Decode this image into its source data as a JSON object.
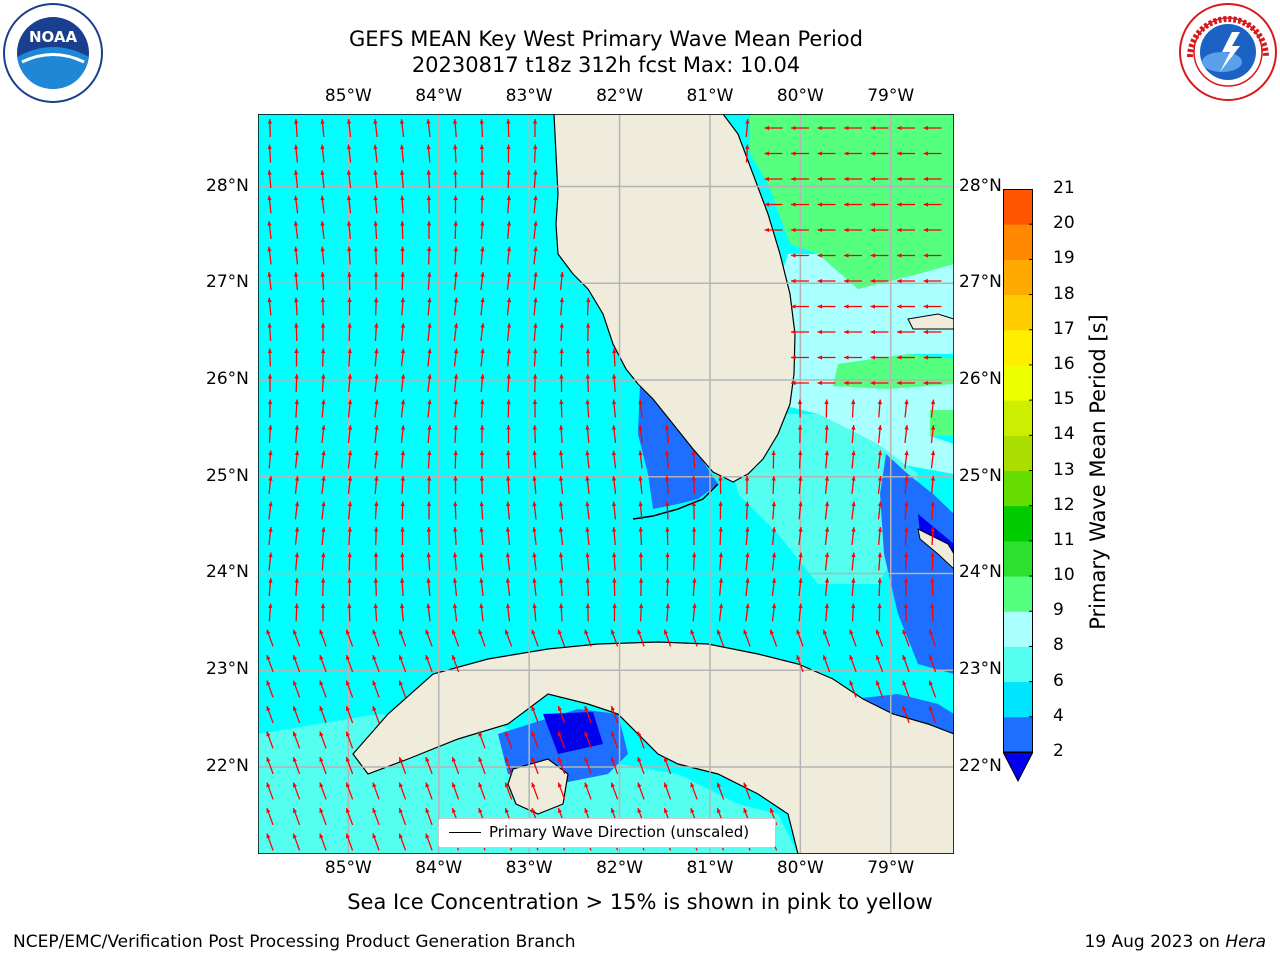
{
  "title": {
    "line1": "GEFS MEAN Key West Primary Wave Mean Period",
    "line2": "20230817 t18z 312h fcst   Max: 10.04"
  },
  "logos": {
    "left": {
      "icon": "noaa-logo",
      "text": "NOAA",
      "ring_text": "NATIONAL OCEANIC AND ATMOSPHERIC ADMINISTRATION · U.S. DEPARTMENT OF COMMERCE"
    },
    "right": {
      "icon": "nws-logo",
      "ring_text": "NATIONAL WEATHER SERVICE"
    }
  },
  "map": {
    "longitude_labels": [
      "85°W",
      "84°W",
      "83°W",
      "82°W",
      "81°W",
      "80°W",
      "79°W"
    ],
    "latitude_labels": [
      "28°N",
      "27°N",
      "26°N",
      "25°N",
      "24°N",
      "23°N",
      "22°N"
    ],
    "extent": {
      "lon": [
        -86.0,
        -78.3
      ],
      "lat": [
        21.1,
        28.75
      ]
    },
    "land_color": "#efecdc",
    "grid": true
  },
  "legend": {
    "label": "Primary Wave Direction (unscaled)",
    "arrow_color": "#ff0000"
  },
  "colorbar": {
    "title": "Primary Wave Mean Period [s]",
    "ticks": [
      "2",
      "4",
      "6",
      "8",
      "9",
      "10",
      "11",
      "12",
      "13",
      "14",
      "15",
      "16",
      "17",
      "18",
      "19",
      "20",
      "21"
    ],
    "colors": [
      "#1e6eff",
      "#00e5ff",
      "#55fff0",
      "#aaffff",
      "#55ff7f",
      "#2de02d",
      "#00cc00",
      "#66dd00",
      "#aadd00",
      "#ccee00",
      "#eeff00",
      "#ffee00",
      "#ffcc00",
      "#ffaa00",
      "#ff8800",
      "#ff5500",
      "#ff2200"
    ],
    "under_color": "#0000ee"
  },
  "chart_data": {
    "type": "heatmap",
    "variable": "Primary Wave Mean Period",
    "unit": "s",
    "max": 10.04,
    "regions": [
      {
        "area": "Gulf of Mexico",
        "period_range": [
          4,
          6
        ]
      },
      {
        "area": "Atlantic east of Florida north of 26.5N",
        "period_range": [
          9,
          10
        ]
      },
      {
        "area": "Florida Bay / SW Florida coast",
        "period_range": [
          2,
          4
        ]
      },
      {
        "area": "Straits of Florida / NW Bahamas",
        "period_range": [
          2,
          8
        ]
      },
      {
        "area": "Gulf of Batabano (S Cuba)",
        "period_range": [
          0,
          4
        ]
      }
    ]
  },
  "footer": {
    "sea_ice": "Sea Ice Concentration > 15% is shown in pink to yellow",
    "left": "NCEP/EMC/Verification Post Processing Product Generation Branch",
    "date": "19 Aug 2023 on ",
    "host": "Hera"
  }
}
